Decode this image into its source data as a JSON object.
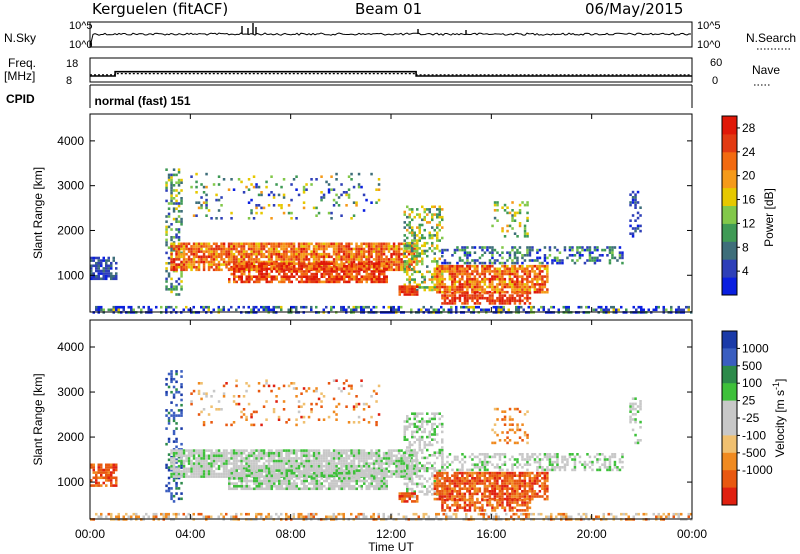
{
  "header": {
    "station": "Kerguelen (fitACF)",
    "beam": "Beam 01",
    "date": "06/May/2015"
  },
  "summary": {
    "nsky_label": "N.Sky",
    "nsearch_label": "N.Search",
    "freq_label": "Freq.",
    "freq_unit": "[MHz]",
    "nave_label": "Nave",
    "cpid_label": "CPID",
    "cpid_value": "normal (fast) 151",
    "log_ticks": [
      "10^5",
      "10^0"
    ],
    "freq_ticks": [
      "18",
      "8"
    ],
    "nave_ticks": [
      "60",
      "0"
    ]
  },
  "colors": {
    "power_scale": [
      "#0a1fe0",
      "#2e3fb8",
      "#3e6e7a",
      "#3f9a55",
      "#82c84a",
      "#e6c800",
      "#f59a1a",
      "#f26a10",
      "#e23a12",
      "#e01808"
    ],
    "velocity_scale": [
      "#1a3aa8",
      "#3a5ec0",
      "#2c8a4a",
      "#3ec03a",
      "#c8c8c8",
      "#c8c8c8",
      "#f0c070",
      "#f08a20",
      "#e85810",
      "#e02010"
    ],
    "ground_scatter": "#c6c6c6"
  },
  "chart_data": [
    {
      "type": "heatmap",
      "name": "power",
      "xlabel": "Time UT",
      "ylabel": "Slant Range [km]",
      "x_ticks": [
        "00:00",
        "04:00",
        "08:00",
        "12:00",
        "16:00",
        "20:00",
        "00:00"
      ],
      "xlim": [
        0,
        24
      ],
      "ylim": [
        180,
        4600
      ],
      "y_ticks": [
        "1000",
        "2000",
        "3000",
        "4000"
      ],
      "colorbar_label": "Power [dB]",
      "colorbar_ticks": [
        "4",
        "8",
        "12",
        "16",
        "20",
        "24",
        "28"
      ],
      "colorbar_range": [
        0,
        30
      ]
    },
    {
      "type": "heatmap",
      "name": "velocity",
      "xlabel": "Time UT",
      "ylabel": "Slant Range [km]",
      "x_ticks": [
        "00:00",
        "04:00",
        "08:00",
        "12:00",
        "16:00",
        "20:00",
        "00:00"
      ],
      "xlim": [
        0,
        24
      ],
      "ylim": [
        180,
        4600
      ],
      "y_ticks": [
        "1000",
        "2000",
        "3000",
        "4000"
      ],
      "colorbar_label": "Velocity [m s",
      "colorbar_label_sup": "-1",
      "colorbar_label_end": "]",
      "colorbar_ticks": [
        "1000",
        "500",
        "100",
        "25",
        "-25",
        "-100",
        "-500",
        "-1000"
      ]
    }
  ],
  "summary_series": {
    "freq_mhz": [
      {
        "t": 0,
        "v": 10.5
      },
      {
        "t": 1.0,
        "v": 10.5
      },
      {
        "t": 1.0,
        "v": 12.3
      },
      {
        "t": 13.0,
        "v": 12.3
      },
      {
        "t": 13.0,
        "v": 10.5
      },
      {
        "t": 24,
        "v": 10.5
      }
    ],
    "nave": [
      {
        "t": 0,
        "v": 18
      },
      {
        "t": 1.0,
        "v": 18
      },
      {
        "t": 1.0,
        "v": 21
      },
      {
        "t": 13.0,
        "v": 21
      },
      {
        "t": 13.0,
        "v": 18
      },
      {
        "t": 24,
        "v": 18
      }
    ],
    "cpid_start": 0.1
  }
}
